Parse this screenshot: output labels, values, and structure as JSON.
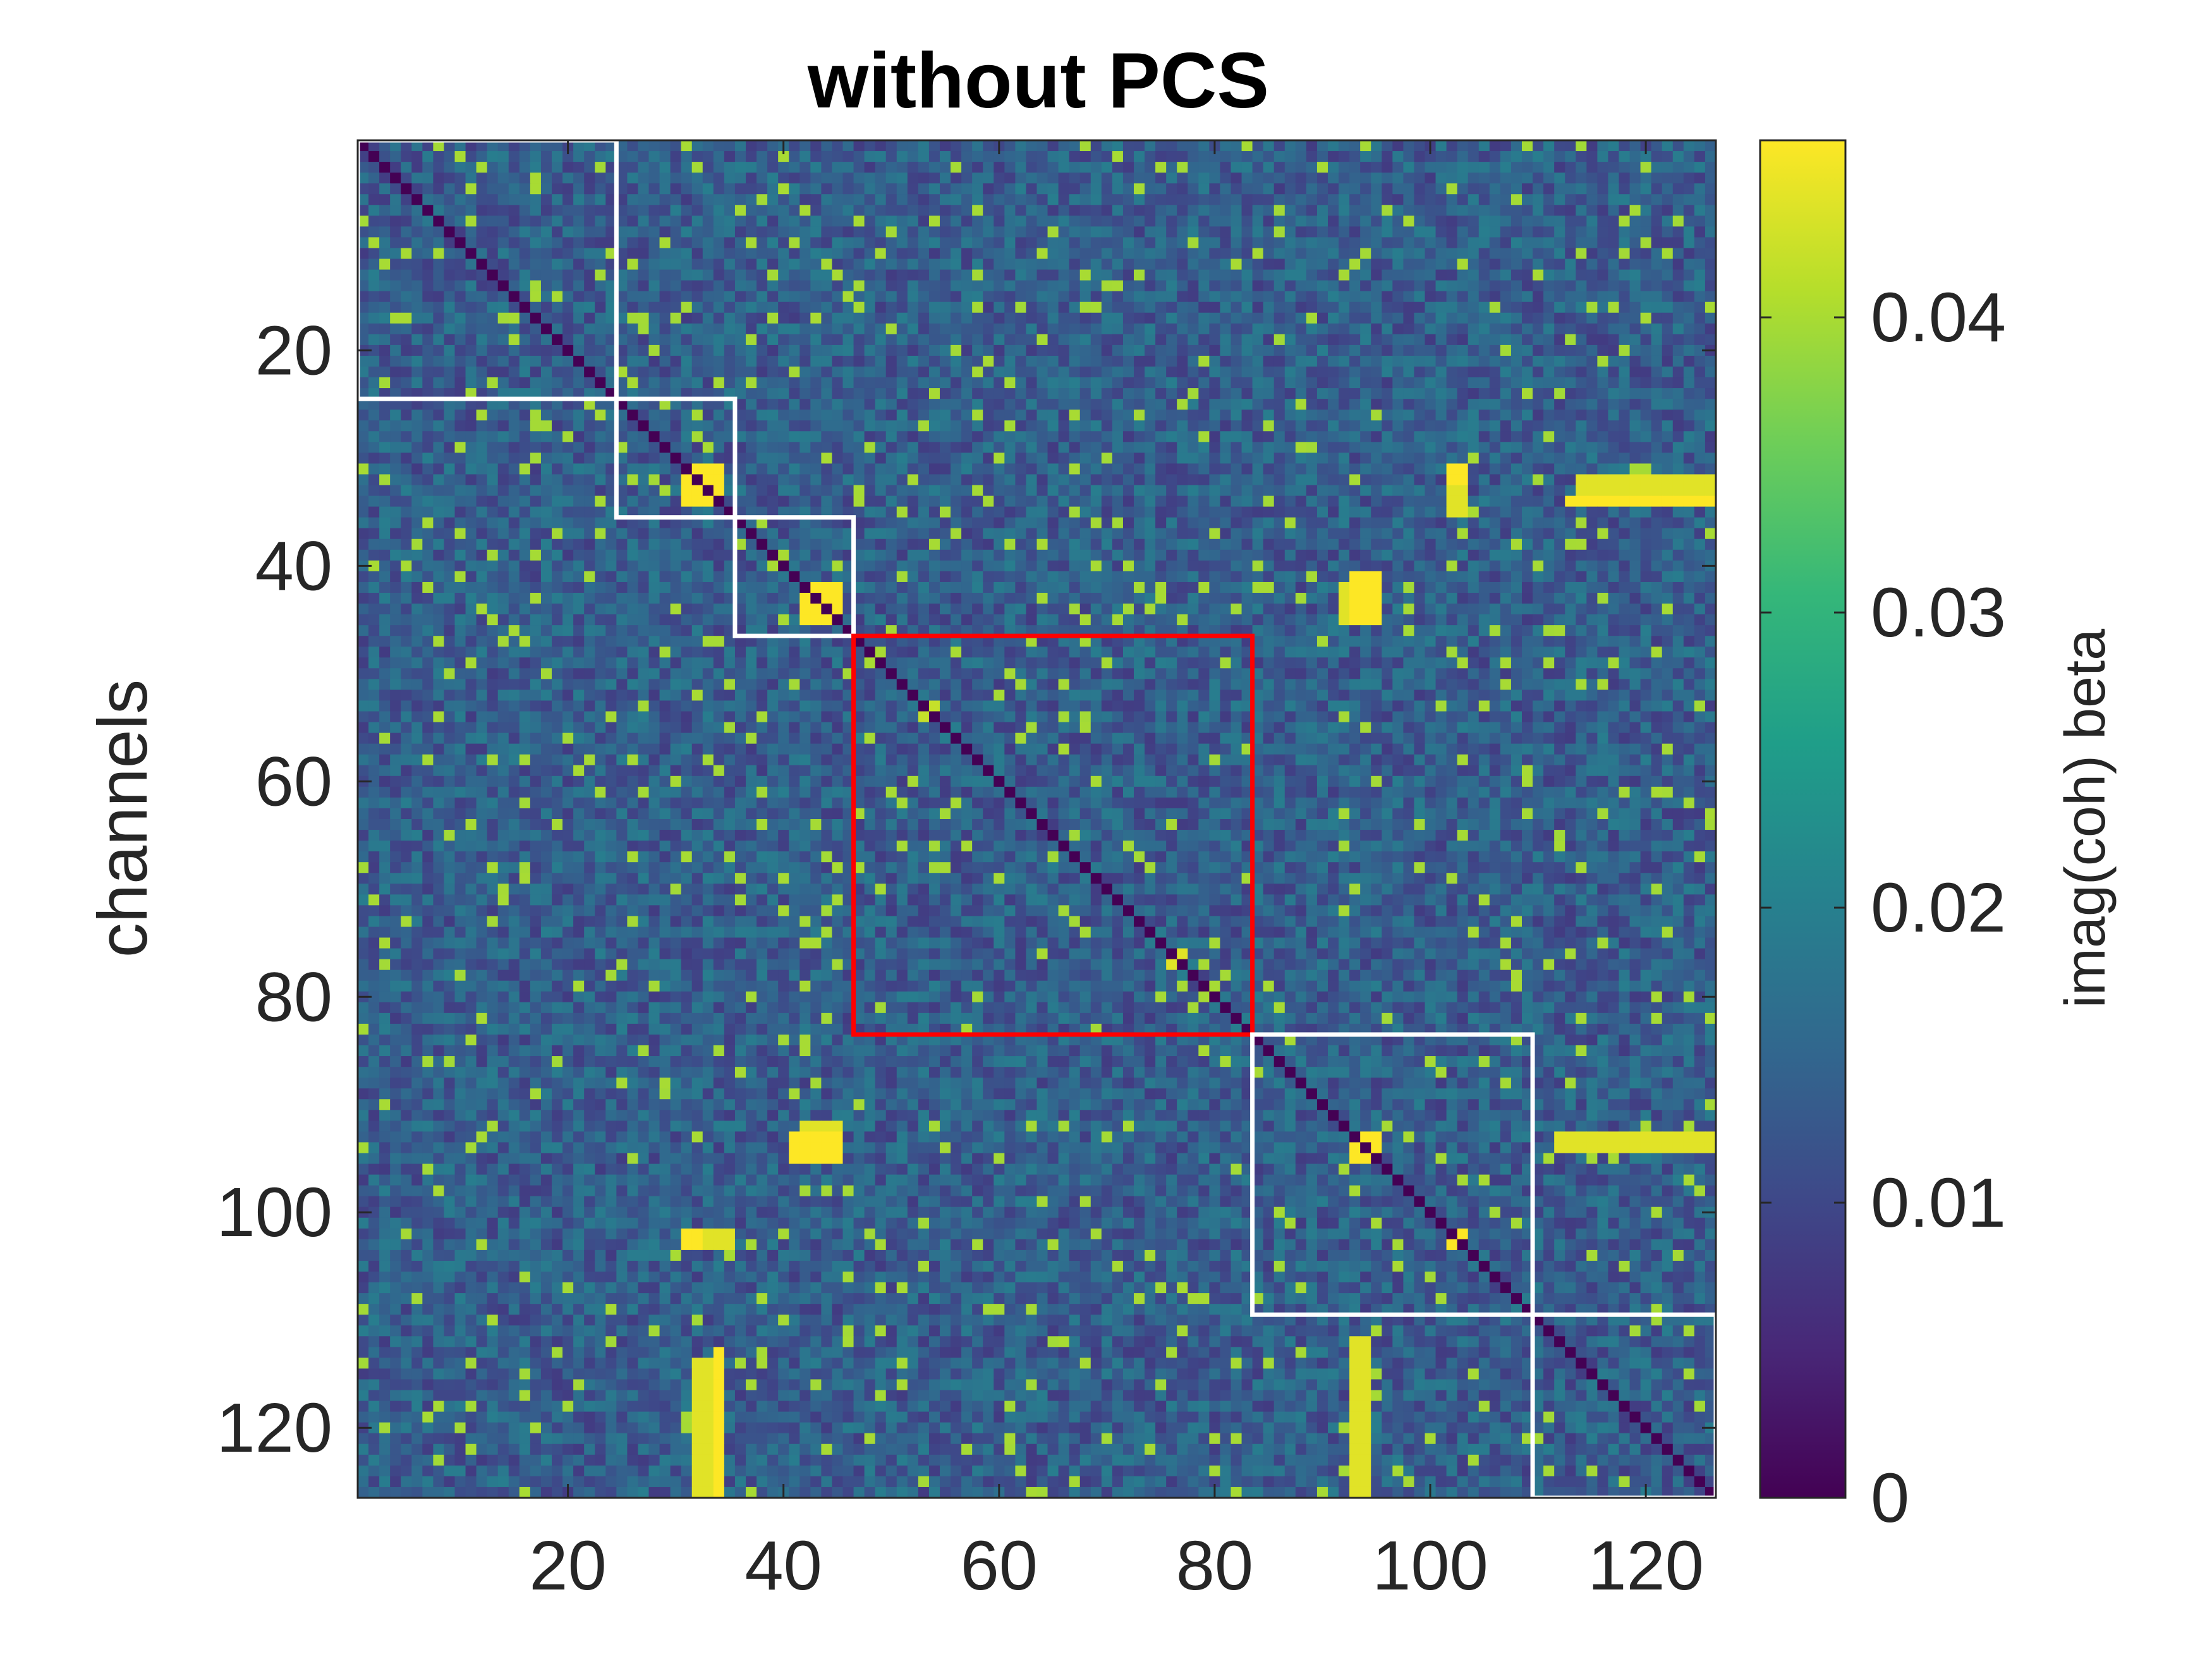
{
  "chart_data": {
    "type": "heatmap",
    "title": "without PCS",
    "xlabel": "",
    "ylabel": "channels",
    "colorbar_label": "imag(coh) beta",
    "n_channels": 126,
    "x_range": [
      0.5,
      126.5
    ],
    "y_range": [
      0.5,
      126.5
    ],
    "y_direction": "reversed",
    "x_ticks": [
      20,
      40,
      60,
      80,
      100,
      120
    ],
    "y_ticks": [
      20,
      40,
      60,
      80,
      100,
      120
    ],
    "color_range": [
      0,
      0.046
    ],
    "colorbar_ticks": [
      0,
      0.01,
      0.02,
      0.03,
      0.04
    ],
    "colormap": "viridis",
    "colormap_stops": [
      "#440154",
      "#482878",
      "#3e4989",
      "#31688e",
      "#26828e",
      "#1f9e89",
      "#35b779",
      "#6ece58",
      "#b5de2b",
      "#fde725"
    ],
    "grid": false,
    "diagonal_value": 0,
    "typical_value": 0.014,
    "blocks": [
      {
        "start": 1,
        "end": 24,
        "color": "#ffffff"
      },
      {
        "start": 25,
        "end": 35,
        "color": "#ffffff"
      },
      {
        "start": 36,
        "end": 46,
        "color": "#ffffff"
      },
      {
        "start": 47,
        "end": 83,
        "color": "#ff0000"
      },
      {
        "start": 84,
        "end": 109,
        "color": "#ffffff"
      },
      {
        "start": 110,
        "end": 126,
        "color": "#ffffff"
      }
    ],
    "hotspots": [
      {
        "rows": [
          31,
          34
        ],
        "cols": [
          31,
          34
        ],
        "value": 0.046
      },
      {
        "rows": [
          42,
          45
        ],
        "cols": [
          42,
          45
        ],
        "value": 0.046
      },
      {
        "rows": [
          34,
          34
        ],
        "cols": [
          113,
          126
        ],
        "value": 0.046
      },
      {
        "rows": [
          42,
          45
        ],
        "cols": [
          92,
          94
        ],
        "value": 0.044
      },
      {
        "rows": [
          93,
          95
        ],
        "cols": [
          41,
          45
        ],
        "value": 0.046
      },
      {
        "rows": [
          93,
          94
        ],
        "cols": [
          112,
          126
        ],
        "value": 0.044
      },
      {
        "rows": [
          102,
          103
        ],
        "cols": [
          31,
          35
        ],
        "value": 0.046
      },
      {
        "rows": [
          114,
          126
        ],
        "cols": [
          32,
          33
        ],
        "value": 0.044
      },
      {
        "rows": [
          114,
          126
        ],
        "cols": [
          93,
          94
        ],
        "value": 0.044
      },
      {
        "rows": [
          94,
          95
        ],
        "cols": [
          93,
          94
        ],
        "value": 0.046
      },
      {
        "rows": [
          102,
          103
        ],
        "cols": [
          102,
          103
        ],
        "value": 0.046
      },
      {
        "rows": [
          33,
          35
        ],
        "cols": [
          102,
          103
        ],
        "value": 0.044
      },
      {
        "rows": [
          76,
          77
        ],
        "cols": [
          76,
          77
        ],
        "value": 0.044
      },
      {
        "rows": [
          54,
          54
        ],
        "cols": [
          53,
          53
        ],
        "value": 0.042
      }
    ]
  }
}
